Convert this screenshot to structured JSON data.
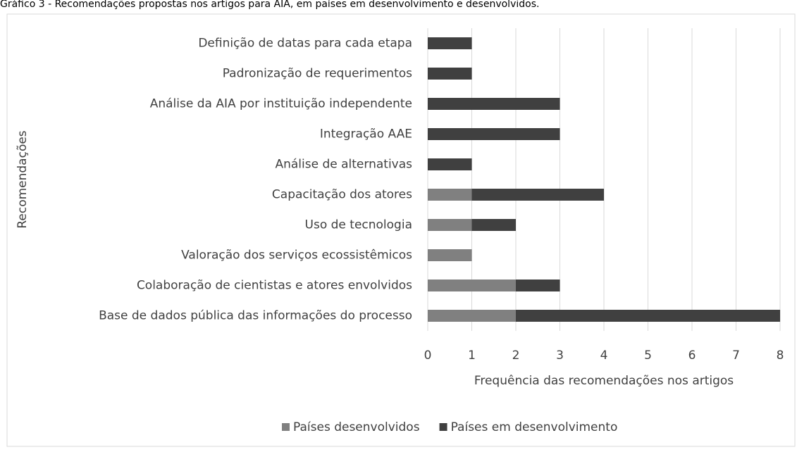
{
  "chart_data": {
    "type": "stacked-barh",
    "title": "Gráfico 3 - Recomendações propostas nos artigos para AIA, em países em desenvolvimento e desenvolvidos.",
    "xlabel": "Frequência das recomendações nos artigos",
    "ylabel": "Recomendações",
    "categories": [
      "Definição de datas para cada etapa",
      "Padronização de requerimentos",
      "Análise da AIA por instituição independente",
      "Integração AAE",
      "Análise de alternativas",
      "Capacitação dos atores",
      "Uso de tecnologia",
      "Valoração dos serviços ecossistêmicos",
      "Colaboração de cientistas e atores envolvidos",
      "Base de dados pública das informações do processo"
    ],
    "series": [
      {
        "name": "Países desenvolvidos",
        "color": "#808080",
        "values": [
          0,
          0,
          0,
          0,
          0,
          1,
          1,
          1,
          2,
          2
        ]
      },
      {
        "name": "Países em desenvolvimento",
        "color": "#404040",
        "values": [
          1,
          1,
          3,
          3,
          1,
          3,
          1,
          0,
          1,
          6
        ]
      }
    ],
    "xlim": [
      0,
      8
    ],
    "xticks": [
      0,
      1,
      2,
      3,
      4,
      5,
      6,
      7,
      8
    ],
    "grid": true,
    "legend": "bottom"
  }
}
